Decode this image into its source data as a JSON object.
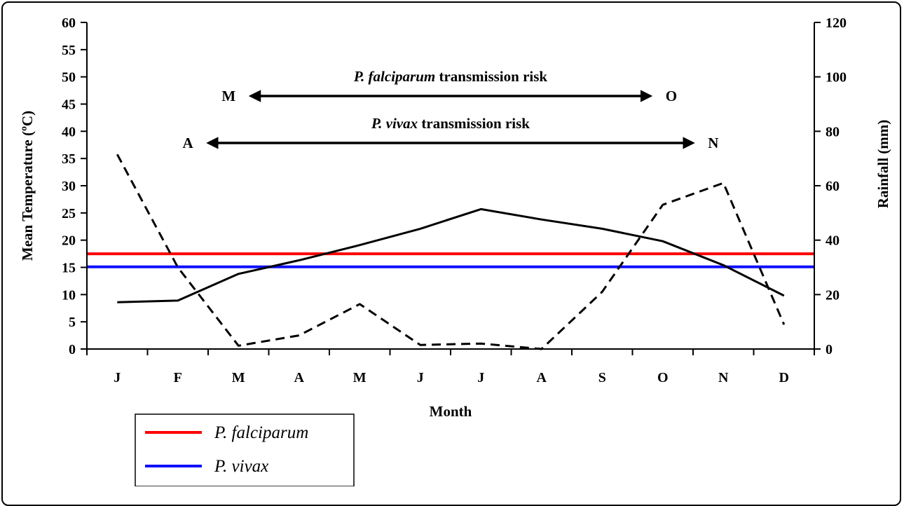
{
  "chart_data": {
    "type": "line",
    "categories": [
      "J",
      "F",
      "M",
      "A",
      "M",
      "J",
      "J",
      "A",
      "S",
      "O",
      "N",
      "D"
    ],
    "xlabel": "Month",
    "ylabel": "Mean Temperature (ºC)",
    "y2label": "Rainfall (mm)",
    "ylim": [
      0,
      60
    ],
    "y2lim": [
      0,
      120
    ],
    "yticks": [
      0,
      5,
      10,
      15,
      20,
      25,
      30,
      35,
      40,
      45,
      50,
      55,
      60
    ],
    "y2ticks": [
      0,
      20,
      40,
      60,
      80,
      100,
      120
    ],
    "series": [
      {
        "axis": "left",
        "style": "solid",
        "color": "#000000",
        "values": [
          8.6,
          8.9,
          13.8,
          16.3,
          19.1,
          22.1,
          25.7,
          23.8,
          22.1,
          19.8,
          15.4,
          9.8
        ]
      },
      {
        "axis": "right",
        "style": "dashed",
        "color": "#000000",
        "values": [
          71.5,
          30.0,
          1.2,
          5.0,
          16.5,
          1.5,
          2.0,
          0.0,
          21.0,
          53.0,
          61.0,
          9.0
        ]
      }
    ],
    "thresholds": [
      {
        "name": "P. falciparum",
        "value": 17.5,
        "color": "#ff0000"
      },
      {
        "name": "P. vivax",
        "value": 15.1,
        "color": "#1010ff"
      }
    ],
    "annotations": [
      {
        "label_italic": "P. falciparum",
        "label_rest": " transmission risk",
        "from": "M",
        "to": "O",
        "from_month": 3.0,
        "to_month": 10.0
      },
      {
        "label_italic": "P. vivax",
        "label_rest": " transmission risk",
        "from": "A",
        "to": "N",
        "from_month": 2.3,
        "to_month": 10.7
      }
    ],
    "legend": {
      "position": "bottom-left",
      "entries": [
        {
          "name": "P. falciparum",
          "color": "#ff0000"
        },
        {
          "name": "P. vivax",
          "color": "#1010ff"
        }
      ]
    }
  }
}
